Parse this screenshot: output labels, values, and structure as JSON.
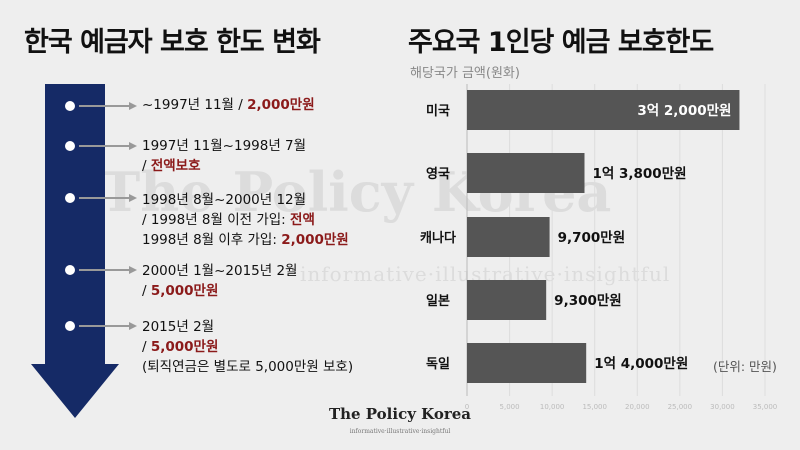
{
  "left_title": "한국 예금자 보호 한도 변화",
  "right_title": "주요국 1인당 예금 보호한도",
  "subtitle": "해당국가 금액(원화)",
  "watermark": "The Policy Korea",
  "watermark_sub": "informative·illustrative·insightful",
  "footer": {
    "brand": "The Policy Korea",
    "tagline": "informative·illustrative·insightful"
  },
  "timeline": {
    "arrow_color": "#152a66",
    "highlight_color": "#8b1a1a",
    "entries": [
      {
        "lines": [
          [
            {
              "t": "~1997년 11월 / "
            },
            {
              "t": "2,000만원",
              "hl": true
            }
          ]
        ]
      },
      {
        "lines": [
          [
            {
              "t": "1997년 11월~1998년 7월"
            }
          ],
          [
            {
              "t": "/ "
            },
            {
              "t": "전액보호",
              "hl": true
            }
          ]
        ]
      },
      {
        "lines": [
          [
            {
              "t": "1998년 8월~2000년 12월"
            }
          ],
          [
            {
              "t": "/ 1998년 8월 이전 가입: "
            },
            {
              "t": "전액",
              "hl": true
            }
          ],
          [
            {
              "t": "1998년 8월 이후 가입: "
            },
            {
              "t": "2,000만원",
              "hl": true
            }
          ]
        ]
      },
      {
        "lines": [
          [
            {
              "t": "2000년 1월~2015년 2월"
            }
          ],
          [
            {
              "t": "/ "
            },
            {
              "t": "5,000만원",
              "hl": true
            }
          ]
        ]
      },
      {
        "lines": [
          [
            {
              "t": "2015년 2월"
            }
          ],
          [
            {
              "t": "/ "
            },
            {
              "t": "5,000만원",
              "hl": true
            }
          ],
          [
            {
              "t": "(퇴직연금은 별도로 5,000만원 보호)"
            }
          ]
        ]
      }
    ]
  },
  "chart_data": {
    "type": "bar",
    "orientation": "horizontal",
    "categories": [
      "미국",
      "영국",
      "캐나다",
      "일본",
      "독일"
    ],
    "values": [
      32000,
      13800,
      9700,
      9300,
      14000
    ],
    "value_labels": [
      "3억 2,000만원",
      "1억 3,800만원",
      "9,700만원",
      "9,300만원",
      "1억 4,000만원"
    ],
    "xlim": [
      0,
      35000
    ],
    "ticks": [
      "0",
      "5,000",
      "10,000",
      "15,000",
      "20,000",
      "25,000",
      "30,000",
      "35,000"
    ],
    "unit_label": "(단위: 만원)",
    "grid": true,
    "bar_color": "#555555"
  }
}
